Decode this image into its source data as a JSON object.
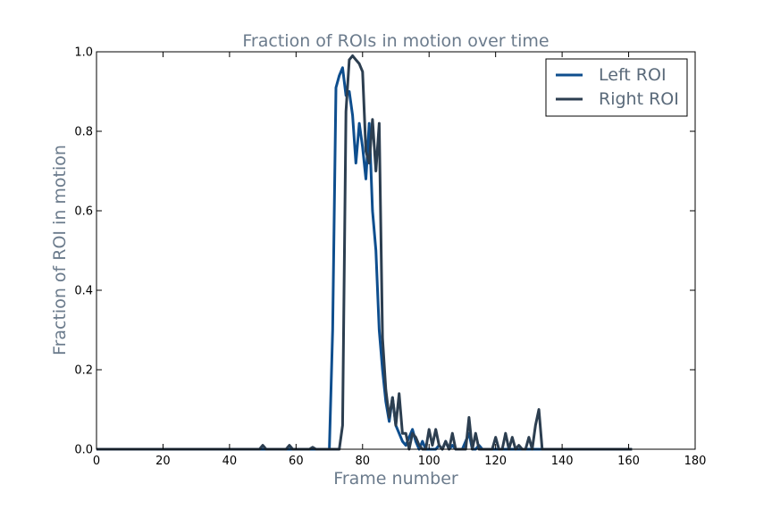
{
  "chart_data": {
    "type": "line",
    "title": "Fraction of ROIs in motion over time",
    "xlabel": "Frame number",
    "ylabel": "Fraction of ROI in motion",
    "xlim": [
      0,
      180
    ],
    "ylim": [
      0,
      1.0
    ],
    "x_ticks": [
      "0",
      "20",
      "40",
      "60",
      "80",
      "100",
      "120",
      "140",
      "160",
      "180"
    ],
    "y_ticks": [
      "0.0",
      "0.2",
      "0.4",
      "0.6",
      "0.8",
      "1.0"
    ],
    "grid": false,
    "legend_position": "top-right",
    "series": [
      {
        "name": "Left ROI",
        "color": "#0e4e8e",
        "points": [
          [
            0,
            0
          ],
          [
            70,
            0
          ],
          [
            71,
            0.3
          ],
          [
            72,
            0.91
          ],
          [
            73,
            0.94
          ],
          [
            74,
            0.96
          ],
          [
            75,
            0.89
          ],
          [
            76,
            0.9
          ],
          [
            77,
            0.84
          ],
          [
            78,
            0.72
          ],
          [
            79,
            0.82
          ],
          [
            80,
            0.76
          ],
          [
            81,
            0.68
          ],
          [
            82,
            0.82
          ],
          [
            83,
            0.6
          ],
          [
            84,
            0.5
          ],
          [
            85,
            0.3
          ],
          [
            86,
            0.2
          ],
          [
            87,
            0.12
          ],
          [
            88,
            0.07
          ],
          [
            89,
            0.13
          ],
          [
            90,
            0.06
          ],
          [
            91,
            0.04
          ],
          [
            92,
            0.02
          ],
          [
            93,
            0.01
          ],
          [
            94,
            0.03
          ],
          [
            95,
            0.05
          ],
          [
            96,
            0.02
          ],
          [
            97,
            0
          ],
          [
            98,
            0.02
          ],
          [
            99,
            0
          ],
          [
            100,
            0
          ],
          [
            102,
            0
          ],
          [
            103,
            0.01
          ],
          [
            104,
            0
          ],
          [
            105,
            0.02
          ],
          [
            106,
            0
          ],
          [
            107,
            0.01
          ],
          [
            108,
            0
          ],
          [
            110,
            0
          ],
          [
            111,
            0.02
          ],
          [
            112,
            0.04
          ],
          [
            113,
            0
          ],
          [
            114,
            0
          ],
          [
            115,
            0.01
          ],
          [
            116,
            0
          ],
          [
            161,
            0
          ]
        ]
      },
      {
        "name": "Right ROI",
        "color": "#2c3e50",
        "points": [
          [
            0,
            0
          ],
          [
            49,
            0
          ],
          [
            50,
            0.01
          ],
          [
            51,
            0
          ],
          [
            57,
            0
          ],
          [
            58,
            0.01
          ],
          [
            59,
            0
          ],
          [
            64,
            0
          ],
          [
            65,
            0.005
          ],
          [
            66,
            0
          ],
          [
            73,
            0
          ],
          [
            74,
            0.06
          ],
          [
            75,
            0.85
          ],
          [
            76,
            0.98
          ],
          [
            77,
            0.99
          ],
          [
            78,
            0.98
          ],
          [
            79,
            0.97
          ],
          [
            80,
            0.95
          ],
          [
            81,
            0.75
          ],
          [
            82,
            0.72
          ],
          [
            83,
            0.83
          ],
          [
            84,
            0.7
          ],
          [
            85,
            0.82
          ],
          [
            86,
            0.28
          ],
          [
            87,
            0.15
          ],
          [
            88,
            0.08
          ],
          [
            89,
            0.13
          ],
          [
            90,
            0.06
          ],
          [
            91,
            0.14
          ],
          [
            92,
            0.04
          ],
          [
            93,
            0.04
          ],
          [
            94,
            0
          ],
          [
            95,
            0.04
          ],
          [
            96,
            0.03
          ],
          [
            97,
            0.01
          ],
          [
            98,
            0
          ],
          [
            99,
            0
          ],
          [
            100,
            0.05
          ],
          [
            101,
            0.01
          ],
          [
            102,
            0.05
          ],
          [
            103,
            0.01
          ],
          [
            104,
            0
          ],
          [
            105,
            0.02
          ],
          [
            106,
            0
          ],
          [
            107,
            0.04
          ],
          [
            108,
            0
          ],
          [
            111,
            0
          ],
          [
            112,
            0.08
          ],
          [
            113,
            0
          ],
          [
            114,
            0.04
          ],
          [
            115,
            0
          ],
          [
            119,
            0
          ],
          [
            120,
            0.03
          ],
          [
            121,
            0
          ],
          [
            122,
            0
          ],
          [
            123,
            0.04
          ],
          [
            124,
            0
          ],
          [
            125,
            0.03
          ],
          [
            126,
            0
          ],
          [
            127,
            0.01
          ],
          [
            128,
            0
          ],
          [
            129,
            0
          ],
          [
            130,
            0.03
          ],
          [
            131,
            0
          ],
          [
            132,
            0.06
          ],
          [
            133,
            0.1
          ],
          [
            134,
            0
          ],
          [
            161,
            0
          ]
        ]
      }
    ]
  }
}
